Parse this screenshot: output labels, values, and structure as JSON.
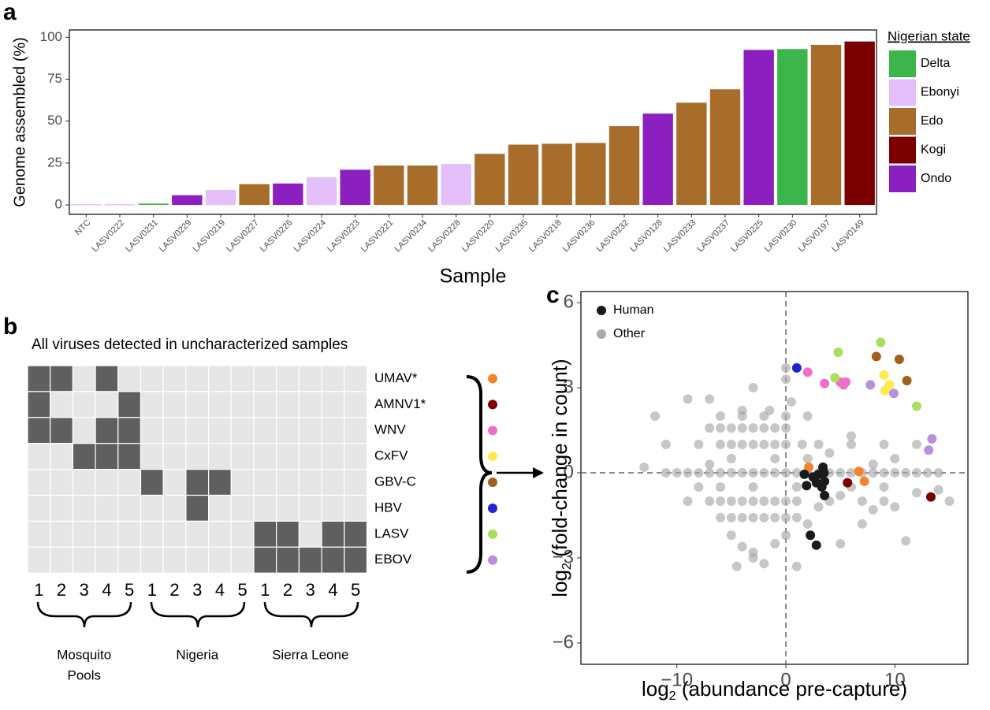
{
  "chart_data": [
    {
      "type": "bar",
      "panel_label": "a",
      "ylabel": "Genome assembled (%)",
      "xlabel": "Sample",
      "legend_title": "Nigerian state",
      "categories": [
        "NTC",
        "LASV0222",
        "LASV0231",
        "LASV0229",
        "LASV0219",
        "LASV0227",
        "LASV0226",
        "LASV0224",
        "LASV0223",
        "LASV0221",
        "LASV0234",
        "LASV0228",
        "LASV0220",
        "LASV0235",
        "LASV0218",
        "LASV0236",
        "LASV0232",
        "LASV0128",
        "LASV0233",
        "LASV0237",
        "LASV0225",
        "LASV0230",
        "LASV0197",
        "LASV0149"
      ],
      "series": [
        {
          "name": "Delta",
          "color": "#3cb54a",
          "values": [
            null,
            null,
            0.8,
            null,
            null,
            null,
            null,
            null,
            null,
            null,
            null,
            null,
            null,
            null,
            null,
            null,
            null,
            null,
            null,
            null,
            null,
            93,
            null,
            null
          ]
        },
        {
          "name": "Ebonyi",
          "color": "#e5bff9",
          "values": [
            0,
            0,
            null,
            null,
            9,
            null,
            null,
            16.5,
            null,
            null,
            null,
            24.5,
            null,
            null,
            null,
            null,
            null,
            null,
            null,
            null,
            null,
            null,
            null,
            null
          ]
        },
        {
          "name": "Edo",
          "color": "#a86c2b",
          "values": [
            null,
            null,
            null,
            null,
            null,
            12.4,
            null,
            null,
            null,
            23.5,
            23.5,
            null,
            30.5,
            36,
            36.5,
            37,
            47,
            null,
            61,
            69,
            null,
            null,
            95.5,
            null
          ]
        },
        {
          "name": "Kogi",
          "color": "#7d0000",
          "values": [
            null,
            null,
            null,
            null,
            null,
            null,
            null,
            null,
            null,
            null,
            null,
            null,
            null,
            null,
            null,
            null,
            null,
            null,
            null,
            null,
            null,
            null,
            null,
            97.5
          ]
        },
        {
          "name": "Ondo",
          "color": "#8b1fbf",
          "values": [
            null,
            null,
            null,
            5.8,
            null,
            null,
            12.8,
            null,
            21,
            null,
            null,
            null,
            null,
            null,
            null,
            null,
            null,
            54.5,
            null,
            null,
            92.5,
            null,
            null,
            null
          ]
        }
      ],
      "ylim": [
        -5.6,
        104.4
      ],
      "yticks": [
        0,
        25,
        50,
        75,
        100
      ],
      "grid": false
    },
    {
      "type": "heatmap",
      "panel_label": "b",
      "title": "All viruses detected in uncharacterized samples",
      "cell_colors": [
        "#e6e6e6",
        "#5f5f5f"
      ],
      "rows": [
        {
          "name": "UMAV*",
          "color": "#f5822f"
        },
        {
          "name": "AMNV1*",
          "color": "#7d0000"
        },
        {
          "name": "WNV",
          "color": "#f06ec8"
        },
        {
          "name": "CxFV",
          "color": "#ffe94f"
        },
        {
          "name": "GBV-C",
          "color": "#a0601c"
        },
        {
          "name": "HBV",
          "color": "#2222d0"
        },
        {
          "name": "LASV",
          "color": "#a6e05c"
        },
        {
          "name": "EBOV",
          "color": "#b88ee0"
        }
      ],
      "columns": [
        1,
        2,
        3,
        4,
        5,
        1,
        2,
        3,
        4,
        5,
        1,
        2,
        3,
        4,
        5
      ],
      "groups": [
        [
          "Mosquito",
          "Pools"
        ],
        [
          "Nigeria"
        ],
        [
          "Sierra Leone"
        ]
      ],
      "values": [
        [
          1,
          1,
          0,
          1,
          0,
          0,
          0,
          0,
          0,
          0,
          0,
          0,
          0,
          0,
          0
        ],
        [
          1,
          0,
          0,
          0,
          1,
          0,
          0,
          0,
          0,
          0,
          0,
          0,
          0,
          0,
          0
        ],
        [
          1,
          1,
          0,
          1,
          1,
          0,
          0,
          0,
          0,
          0,
          0,
          0,
          0,
          0,
          0
        ],
        [
          0,
          0,
          1,
          1,
          1,
          0,
          0,
          0,
          0,
          0,
          0,
          0,
          0,
          0,
          0
        ],
        [
          0,
          0,
          0,
          0,
          0,
          1,
          0,
          1,
          1,
          0,
          0,
          0,
          0,
          0,
          0
        ],
        [
          0,
          0,
          0,
          0,
          0,
          0,
          0,
          1,
          0,
          0,
          0,
          0,
          0,
          0,
          0
        ],
        [
          0,
          0,
          0,
          0,
          0,
          0,
          0,
          0,
          0,
          0,
          1,
          1,
          0,
          1,
          1
        ],
        [
          0,
          0,
          0,
          0,
          0,
          0,
          0,
          0,
          0,
          0,
          1,
          1,
          1,
          1,
          1
        ]
      ]
    },
    {
      "type": "scatter",
      "panel_label": "c",
      "xlabel": {
        "main": "log",
        "sub": "2",
        "rest": " (abundance pre-capture)"
      },
      "ylabel": {
        "main": "log",
        "sub": "2",
        "rest": " (fold-change in count)"
      },
      "xlim": [
        -18.8,
        16.7
      ],
      "ylim": [
        -6.75,
        6.39
      ],
      "xticks": [
        {
          "value": -10,
          "label": "−10"
        },
        0,
        10
      ],
      "yticks": [
        {
          "value": -6,
          "label": "−6"
        },
        {
          "value": -3,
          "label": "−3"
        },
        0,
        3,
        6
      ],
      "zero_lines": true,
      "series": [
        {
          "name": "Other",
          "color": "#a9a9a9",
          "x": [
            -10,
            -9,
            -8,
            -7,
            -6,
            -5,
            -4,
            -3,
            -2,
            -1,
            0,
            1,
            2,
            3,
            4,
            5,
            6,
            7,
            8,
            9,
            10,
            11,
            12,
            13,
            14,
            -8,
            -6,
            -5,
            -4,
            -3,
            -2,
            -1,
            0,
            1.5,
            3,
            6,
            9,
            12,
            -7,
            -6,
            -5,
            -4,
            -3,
            -2,
            -1,
            0,
            -9,
            -7,
            -6,
            -5,
            -4,
            -3,
            -2,
            -1,
            0,
            1,
            4,
            7,
            9,
            -6,
            -5,
            -4,
            -3,
            -2,
            -1,
            0,
            1,
            -6,
            -4,
            -2,
            0,
            2,
            -11,
            -11,
            -12,
            -9,
            -7,
            -3,
            0,
            0,
            -5,
            -4,
            -3,
            -4.5,
            -3,
            -1,
            0,
            2,
            5,
            7,
            11,
            8,
            10,
            12,
            15,
            14,
            -2,
            1,
            3,
            5,
            6,
            8,
            4,
            2,
            -1,
            -3,
            -6,
            -8,
            -5,
            -7,
            9,
            10,
            6,
            1,
            0.5,
            -1.5,
            -4,
            -13
          ],
          "y": [
            0,
            0,
            0,
            0,
            0,
            0,
            0,
            0,
            0,
            0,
            0,
            0,
            0,
            0,
            0,
            0,
            0,
            0,
            0,
            0,
            0,
            0,
            0,
            0,
            0,
            1,
            1,
            1,
            1,
            1,
            1,
            1,
            1,
            1,
            1,
            1,
            1,
            1,
            1.58,
            1.58,
            1.58,
            1.58,
            1.58,
            1.58,
            1.58,
            1.58,
            -1,
            -1,
            -1,
            -1,
            -1,
            -1,
            -1,
            -1,
            -1,
            -1,
            -1,
            -1,
            -1,
            -1.58,
            -1.58,
            -1.58,
            -1.58,
            -1.58,
            -1.58,
            -1.58,
            -1.58,
            2,
            2,
            2,
            2,
            2,
            1,
            0,
            2,
            2.6,
            2.6,
            3,
            3.7,
            3.3,
            -2.2,
            -2.6,
            -2.8,
            -3.3,
            -3,
            -2.5,
            -2.2,
            -1.8,
            -2.5,
            -1.8,
            -2.4,
            0.3,
            0.5,
            -0.7,
            -1,
            -0.6,
            -3.2,
            -3.3,
            -1.2,
            -0.8,
            1.3,
            -1.3,
            0.7,
            0.5,
            0.5,
            -0.5,
            -0.5,
            -0.5,
            0.5,
            0.3,
            -0.5,
            -1.2,
            -0.5,
            -0.5,
            2.5,
            2.2,
            2.2,
            0.2
          ]
        },
        {
          "color": "#f5822f",
          "x": [
            2.1,
            6.7,
            7.2
          ],
          "y": [
            0.2,
            0.05,
            -0.3
          ]
        },
        {
          "color": "#7d0000",
          "x": [
            5.65,
            13.3
          ],
          "y": [
            -0.35,
            -0.85
          ]
        },
        {
          "color": "#f06ec8",
          "x": [
            2,
            3.55,
            5,
            5.3,
            5.5
          ],
          "y": [
            3.55,
            3.15,
            3.2,
            3.1,
            3.2
          ]
        },
        {
          "color": "#ffe94f",
          "x": [
            9,
            9.1,
            9.5
          ],
          "y": [
            3.45,
            2.9,
            3.1
          ]
        },
        {
          "color": "#a0601c",
          "x": [
            8.3,
            10.4,
            11.1
          ],
          "y": [
            4.1,
            4,
            3.25
          ]
        },
        {
          "color": "#2222d0",
          "x": [
            1
          ],
          "y": [
            3.7
          ]
        },
        {
          "color": "#a6e05c",
          "x": [
            4.8,
            4.5,
            8.7,
            12
          ],
          "y": [
            4.25,
            3.35,
            4.6,
            2.35
          ]
        },
        {
          "color": "#b88ee0",
          "x": [
            7.75,
            9.9,
            13.4,
            13.1
          ],
          "y": [
            3.1,
            2.8,
            1.2,
            0.8
          ]
        },
        {
          "name": "Human",
          "color": "#1a1a1a",
          "x": [
            1.7,
            3,
            3.4,
            3.55,
            3.55,
            3.3,
            2.8,
            1.9,
            2.25,
            2.8,
            3.5,
            2.5
          ],
          "y": [
            -0.05,
            -0.05,
            0.2,
            -0.3,
            -0.8,
            -0.5,
            -0.35,
            -0.45,
            -2.2,
            -2.55,
            0,
            -0.15
          ]
        }
      ]
    }
  ]
}
